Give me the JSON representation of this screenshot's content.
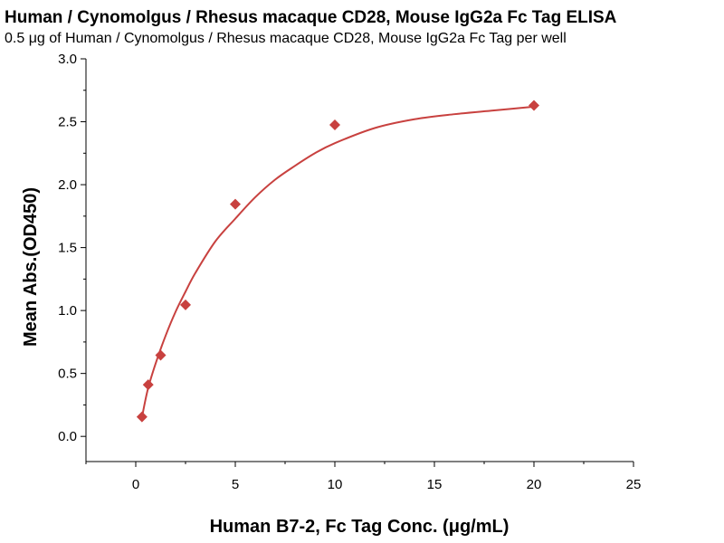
{
  "chart_data": {
    "type": "scatter",
    "title": "Human / Cynomolgus / Rhesus macaque CD28, Mouse IgG2a Fc Tag ELISA",
    "subtitle": "0.5 μg of Human / Cynomolgus / Rhesus macaque CD28, Mouse IgG2a Fc Tag per well",
    "xlabel": "Human B7-2, Fc Tag Conc. (μg/mL)",
    "ylabel": "Mean Abs.(OD450)",
    "xlim": [
      -2.5,
      25
    ],
    "ylim": [
      -0.2,
      3.0
    ],
    "xticks": [
      0,
      5,
      10,
      15,
      20,
      25
    ],
    "yticks": [
      0.0,
      0.5,
      1.0,
      1.5,
      2.0,
      2.5,
      3.0
    ],
    "xtick_labels": [
      "0",
      "5",
      "10",
      "15",
      "20",
      "25"
    ],
    "ytick_labels": [
      "0.0",
      "0.5",
      "1.0",
      "1.5",
      "2.0",
      "2.5",
      "3.0"
    ],
    "grid": false,
    "legend": "none",
    "color": "#c8413f",
    "points": {
      "x": [
        0.3125,
        0.625,
        1.25,
        2.5,
        5,
        10,
        20
      ],
      "y": [
        0.155,
        0.41,
        0.645,
        1.045,
        1.845,
        2.475,
        2.63
      ]
    },
    "fit_curve": {
      "x": [
        0.31,
        0.6,
        1.0,
        1.5,
        2.0,
        2.5,
        3.0,
        4.0,
        5.0,
        6.0,
        7.0,
        8.0,
        9.0,
        10.0,
        12.0,
        14.0,
        16.0,
        18.0,
        20.0
      ],
      "y": [
        0.15,
        0.37,
        0.58,
        0.8,
        0.99,
        1.15,
        1.3,
        1.55,
        1.73,
        1.9,
        2.04,
        2.15,
        2.25,
        2.33,
        2.45,
        2.52,
        2.56,
        2.59,
        2.62
      ]
    }
  }
}
